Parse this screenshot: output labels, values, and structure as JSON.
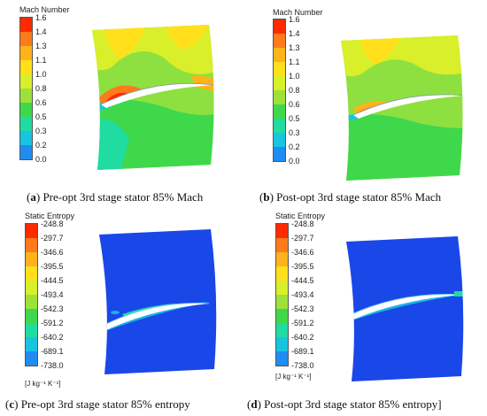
{
  "panels": [
    {
      "id": "a",
      "legend_title": "Mach Number",
      "ticks": [
        "1.6",
        "1.4",
        "1.3",
        "1.1",
        "1.0",
        "0.8",
        "0.6",
        "0.5",
        "0.3",
        "0.2",
        "0.0"
      ],
      "unit": "",
      "caption_letter": "a",
      "caption_text": "Pre-opt 3rd stage stator 85% Mach"
    },
    {
      "id": "b",
      "legend_title": "Mach Number",
      "ticks": [
        "1.6",
        "1.4",
        "1.3",
        "1.1",
        "1.0",
        "0.8",
        "0.6",
        "0.5",
        "0.3",
        "0.2",
        "0.0"
      ],
      "unit": "",
      "caption_letter": "b",
      "caption_text": "Post-opt 3rd stage stator 85% Mach"
    },
    {
      "id": "c",
      "legend_title": "Static Entropy",
      "ticks": [
        "-248.8",
        "-297.7",
        "-346.6",
        "-395.5",
        "-444.5",
        "-493.4",
        "-542.3",
        "-591.2",
        "-640.2",
        "-689.1",
        "-738.0"
      ],
      "unit": "[J kg⁻¹ K⁻¹]",
      "caption_letter": "c",
      "caption_text": "Pre-opt 3rd stage stator 85% entropy"
    },
    {
      "id": "d",
      "legend_title": "Static Entropy",
      "ticks": [
        "-248.8",
        "-297.7",
        "-346.6",
        "-395.5",
        "-444.5",
        "-493.4",
        "-542.3",
        "-591.2",
        "-640.2",
        "-689.1",
        "-738.0"
      ],
      "unit": "[J kg⁻¹ K⁻¹]",
      "caption_letter": "d",
      "caption_text": "Post-opt 3rd stage stator 85% entropy]"
    }
  ],
  "colormap": [
    "#ff2a00",
    "#ff7a1a",
    "#ffb31a",
    "#ffe01a",
    "#d8ef2a",
    "#9fe03a",
    "#3fd84a",
    "#20dca0",
    "#18c4e0",
    "#1e8cf0",
    "#0a3cf0"
  ]
}
